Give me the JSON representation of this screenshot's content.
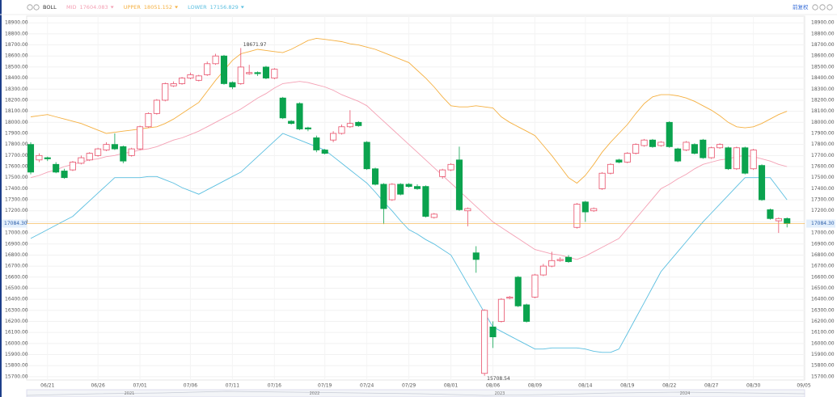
{
  "chart_data": {
    "type": "candlestick",
    "title": "BOLL",
    "adjust_label": "前复权",
    "up_color": "#e8506a",
    "down_color": "#0ba34e",
    "grid": true,
    "categories": [
      null,
      null,
      "06/21",
      null,
      null,
      null,
      null,
      null,
      "06/26",
      null,
      null,
      null,
      null,
      "07/01",
      null,
      null,
      null,
      null,
      null,
      "07/06",
      null,
      null,
      null,
      null,
      "07/11",
      null,
      null,
      null,
      null,
      "07/16",
      null,
      null,
      null,
      null,
      null,
      "07/19",
      null,
      null,
      null,
      null,
      "07/24",
      null,
      null,
      null,
      null,
      "07/29",
      null,
      null,
      null,
      null,
      "08/01",
      null,
      null,
      null,
      null,
      "08/06",
      null,
      null,
      null,
      null,
      "08/09",
      null,
      null,
      null,
      null,
      null,
      "08/14",
      null,
      null,
      null,
      null,
      "08/19",
      null,
      null,
      null,
      null,
      "08/22",
      null,
      null,
      null,
      null,
      "08/27",
      null,
      null,
      null,
      null,
      "08/30",
      null,
      null,
      null,
      null,
      null,
      "09/05"
    ],
    "open": [
      17800,
      17660,
      17680,
      17620,
      17560,
      17570,
      17630,
      17660,
      17700,
      17750,
      17800,
      17780,
      17700,
      17760,
      17960,
      18080,
      18200,
      18330,
      18350,
      18400,
      18380,
      18430,
      18530,
      18600,
      18360,
      18350,
      18440,
      18450,
      18500,
      18400,
      18220,
      18010,
      18170,
      17950,
      17860,
      17750,
      17840,
      17900,
      17960,
      18000,
      17820,
      17580,
      17440,
      17300,
      17440,
      17440,
      17420,
      17420,
      17140,
      17510,
      17570,
      17660,
      17200,
      16820,
      15730,
      16150,
      16200,
      16410,
      16600,
      16350,
      16420,
      16620,
      16700,
      16750,
      16780,
      17050,
      17280,
      17200,
      17400,
      17540,
      17660,
      17640,
      17720,
      17790,
      17840,
      17790,
      18000,
      17760,
      17750,
      17800,
      17840,
      17680,
      17770,
      17770,
      17580,
      17770,
      17580,
      17610,
      17210,
      17110,
      17130,
      null,
      null
    ],
    "high": [
      17820,
      17720,
      17690,
      17640,
      17580,
      17650,
      17700,
      17730,
      17770,
      17820,
      17900,
      17790,
      17770,
      17970,
      18090,
      18210,
      18360,
      18370,
      18410,
      18450,
      18430,
      18550,
      18620,
      18610,
      18370,
      18671.97,
      18520,
      18460,
      18510,
      18490,
      18230,
      18020,
      18180,
      17960,
      17880,
      17760,
      17920,
      17980,
      18110,
      18010,
      17830,
      17590,
      17450,
      17450,
      17450,
      17450,
      17440,
      17430,
      17180,
      17580,
      17630,
      17780,
      17230,
      16880,
      16310,
      16200,
      16410,
      16430,
      16610,
      16360,
      16630,
      16720,
      16830,
      16780,
      16800,
      17270,
      17290,
      17230,
      17550,
      17630,
      17670,
      17730,
      17810,
      17850,
      17850,
      17830,
      18010,
      17770,
      17830,
      17810,
      17850,
      17780,
      17810,
      17780,
      17780,
      17780,
      17760,
      17620,
      17220,
      17140,
      17140,
      null,
      null
    ],
    "low": [
      17530,
      17640,
      17650,
      17540,
      17490,
      17560,
      17620,
      17650,
      17690,
      17740,
      17750,
      17630,
      17690,
      17750,
      17950,
      18070,
      18190,
      18320,
      18340,
      18390,
      18370,
      18420,
      18520,
      18340,
      18300,
      18340,
      18430,
      18420,
      18390,
      18390,
      18030,
      17980,
      17930,
      17920,
      17730,
      17710,
      17820,
      17890,
      17950,
      17960,
      17570,
      17430,
      17080,
      17290,
      17340,
      17410,
      17390,
      17140,
      17130,
      17490,
      17560,
      17200,
      17060,
      16640,
      15708.54,
      15960,
      16190,
      16400,
      16330,
      16190,
      16410,
      16610,
      16690,
      16740,
      16730,
      17040,
      17100,
      17190,
      17390,
      17530,
      17630,
      17630,
      17710,
      17780,
      17770,
      17780,
      17770,
      17640,
      17740,
      17710,
      17670,
      17670,
      17760,
      17570,
      17570,
      17530,
      17570,
      17290,
      17120,
      17000,
      17050,
      null,
      null
    ],
    "close": [
      17550,
      17700,
      17670,
      17550,
      17500,
      17640,
      17680,
      17720,
      17760,
      17800,
      17760,
      17650,
      17760,
      17960,
      18080,
      18200,
      18350,
      18350,
      18400,
      18430,
      18420,
      18530,
      18600,
      18350,
      18320,
      18500,
      18450,
      18440,
      18400,
      18480,
      18040,
      17990,
      17940,
      17940,
      17750,
      17720,
      17900,
      17960,
      17990,
      17970,
      17580,
      17440,
      17220,
      17440,
      17350,
      17420,
      17400,
      17150,
      17170,
      17570,
      17620,
      17210,
      17220,
      16760,
      16300,
      16060,
      16400,
      16420,
      16340,
      16200,
      16620,
      16700,
      16750,
      16760,
      16740,
      17260,
      17190,
      17220,
      17540,
      17620,
      17640,
      17720,
      17800,
      17840,
      17780,
      17820,
      17780,
      17650,
      17820,
      17720,
      17680,
      17770,
      17800,
      17580,
      17770,
      17540,
      17750,
      17300,
      17130,
      17130,
      17084.3,
      null,
      null
    ],
    "series": [
      {
        "name": "MID",
        "legend_value": "17604.083",
        "color": "#f4a0b4",
        "values": [
          17500,
          17520,
          17550,
          17570,
          17600,
          17620,
          17640,
          17660,
          17670,
          17690,
          17700,
          17720,
          17730,
          17750,
          17760,
          17780,
          17810,
          17840,
          17860,
          17890,
          17920,
          17960,
          18000,
          18040,
          18080,
          18120,
          18170,
          18220,
          18260,
          18310,
          18350,
          18360,
          18370,
          18360,
          18340,
          18320,
          18290,
          18250,
          18220,
          18190,
          18150,
          18080,
          18010,
          17940,
          17870,
          17800,
          17730,
          17660,
          17590,
          17520,
          17450,
          17380,
          17310,
          17240,
          17170,
          17100,
          17050,
          17000,
          16950,
          16900,
          16850,
          16830,
          16810,
          16800,
          16780,
          16760,
          16790,
          16830,
          16870,
          16910,
          16950,
          17040,
          17130,
          17220,
          17310,
          17400,
          17440,
          17490,
          17530,
          17580,
          17620,
          17640,
          17660,
          17670,
          17690,
          17700,
          17690,
          17670,
          17650,
          17620,
          17600,
          null,
          null
        ]
      },
      {
        "name": "UPPER",
        "legend_value": "18051.152",
        "color": "#f5b041",
        "values": [
          18050,
          18060,
          18070,
          18050,
          18030,
          18010,
          17990,
          17960,
          17930,
          17900,
          17910,
          17920,
          17930,
          17940,
          17950,
          17960,
          17990,
          18030,
          18080,
          18130,
          18180,
          18280,
          18380,
          18470,
          18560,
          18620,
          18640,
          18660,
          18650,
          18640,
          18630,
          18660,
          18700,
          18740,
          18760,
          18750,
          18740,
          18730,
          18710,
          18700,
          18680,
          18660,
          18630,
          18600,
          18570,
          18540,
          18470,
          18400,
          18320,
          18230,
          18150,
          18140,
          18140,
          18150,
          18140,
          18130,
          18050,
          18000,
          17960,
          17920,
          17880,
          17790,
          17700,
          17600,
          17500,
          17450,
          17520,
          17620,
          17730,
          17820,
          17900,
          17980,
          18080,
          18170,
          18230,
          18250,
          18250,
          18240,
          18220,
          18190,
          18150,
          18110,
          18060,
          18000,
          17960,
          17950,
          17960,
          17990,
          18030,
          18070,
          18100,
          null,
          null
        ]
      },
      {
        "name": "LOWER",
        "legend_value": "17156.829",
        "color": "#5bbfe0",
        "values": [
          16950,
          16990,
          17030,
          17070,
          17110,
          17150,
          17220,
          17290,
          17360,
          17430,
          17500,
          17500,
          17500,
          17500,
          17510,
          17510,
          17480,
          17450,
          17410,
          17380,
          17350,
          17390,
          17430,
          17470,
          17510,
          17550,
          17620,
          17690,
          17760,
          17830,
          17900,
          17870,
          17840,
          17810,
          17780,
          17750,
          17690,
          17630,
          17570,
          17510,
          17450,
          17370,
          17280,
          17200,
          17110,
          17030,
          16990,
          16940,
          16900,
          16850,
          16800,
          16670,
          16540,
          16410,
          16280,
          16150,
          16110,
          16070,
          16030,
          15990,
          15950,
          15950,
          15960,
          15960,
          15960,
          15960,
          15950,
          15930,
          15920,
          15920,
          15950,
          16090,
          16230,
          16370,
          16510,
          16650,
          16740,
          16830,
          16920,
          17010,
          17100,
          17180,
          17260,
          17340,
          17420,
          17500,
          17500,
          17500,
          17500,
          17400,
          17300,
          null,
          null
        ]
      }
    ],
    "last_price": {
      "value": 17084.3,
      "label": "17084.30"
    },
    "ylim": [
      15670,
      18960
    ],
    "yticks": [
      {
        "value": 18900,
        "label": "18900.00"
      },
      {
        "value": 18800,
        "label": "18800.00"
      },
      {
        "value": 18700,
        "label": "18700.00"
      },
      {
        "value": 18600,
        "label": "18600.00"
      },
      {
        "value": 18500,
        "label": "18500.00"
      },
      {
        "value": 18400,
        "label": "18400.00"
      },
      {
        "value": 18300,
        "label": "18300.00"
      },
      {
        "value": 18200,
        "label": "18200.00"
      },
      {
        "value": 18100,
        "label": "18100.00"
      },
      {
        "value": 18000,
        "label": "18000.00"
      },
      {
        "value": 17900,
        "label": "17900.00"
      },
      {
        "value": 17800,
        "label": "17800.00"
      },
      {
        "value": 17700,
        "label": "17700.00"
      },
      {
        "value": 17600,
        "label": "17600.00"
      },
      {
        "value": 17500,
        "label": "17500.00"
      },
      {
        "value": 17400,
        "label": "17400.00"
      },
      {
        "value": 17300,
        "label": "17300.00"
      },
      {
        "value": 17200,
        "label": "17200.00"
      },
      {
        "value": 17100,
        "label": "17100.00"
      },
      {
        "value": 17000,
        "label": "17000.00"
      },
      {
        "value": 16900,
        "label": "16900.00"
      },
      {
        "value": 16800,
        "label": "16800.00"
      },
      {
        "value": 16700,
        "label": "16700.00"
      },
      {
        "value": 16600,
        "label": "16600.00"
      },
      {
        "value": 16500,
        "label": "16500.00"
      },
      {
        "value": 16400,
        "label": "16400.00"
      },
      {
        "value": 16300,
        "label": "16300.00"
      },
      {
        "value": 16200,
        "label": "16200.00"
      },
      {
        "value": 16100,
        "label": "16100.00"
      },
      {
        "value": 16000,
        "label": "16000.00"
      },
      {
        "value": 15900,
        "label": "15900.00"
      },
      {
        "value": 15800,
        "label": "15800.00"
      },
      {
        "value": 15700,
        "label": "15700.00"
      }
    ],
    "annotations": [
      {
        "index": 25,
        "field": "high"
      },
      {
        "index": 54,
        "field": "low"
      }
    ],
    "navigator_labels": [
      "2021",
      "2022",
      "2023",
      "2024"
    ]
  }
}
